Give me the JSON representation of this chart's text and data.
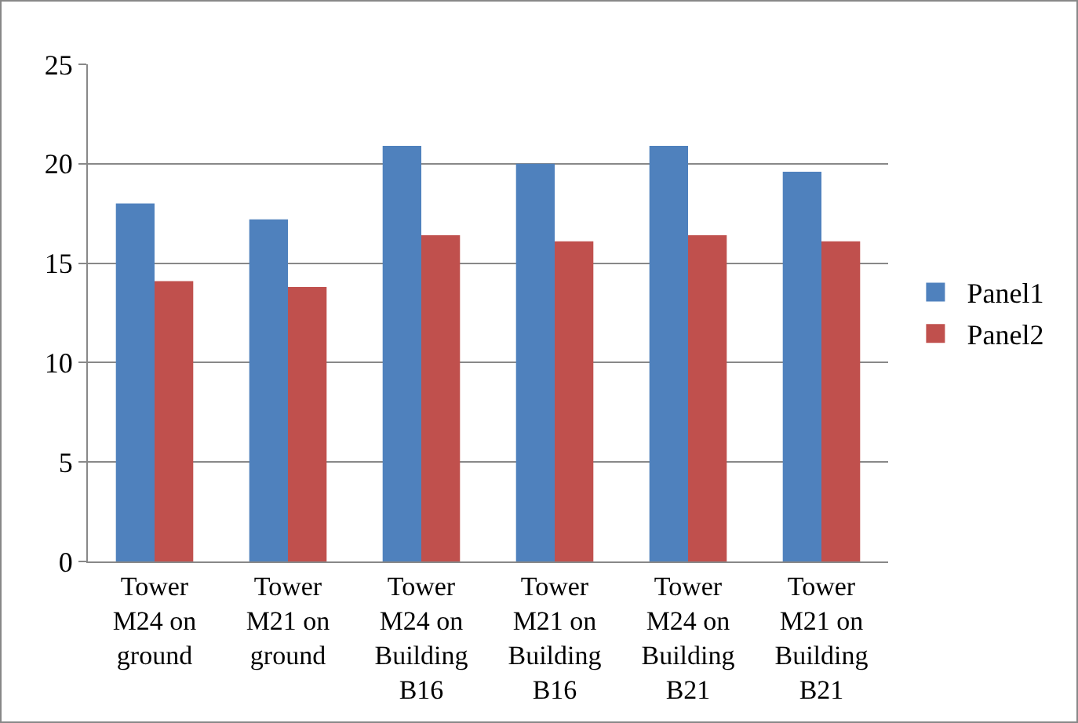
{
  "chart_data": {
    "type": "bar",
    "categories": [
      "Tower M24 on ground",
      "Tower M21 on ground",
      "Tower M24 on Building B16",
      "Tower M21 on Building B16",
      "Tower M24 on Building B21",
      "Tower M21 on Building B21"
    ],
    "series": [
      {
        "name": "Panel1",
        "color": "#4f81bd",
        "values": [
          18.0,
          17.2,
          20.9,
          20.0,
          20.9,
          19.6
        ]
      },
      {
        "name": "Panel2",
        "color": "#c0504d",
        "values": [
          14.1,
          13.8,
          16.4,
          16.1,
          16.4,
          16.1
        ]
      }
    ],
    "ylim": [
      0,
      25
    ],
    "yticks": [
      0,
      5,
      10,
      15,
      20,
      25
    ],
    "grid": "y",
    "legend": "right"
  }
}
